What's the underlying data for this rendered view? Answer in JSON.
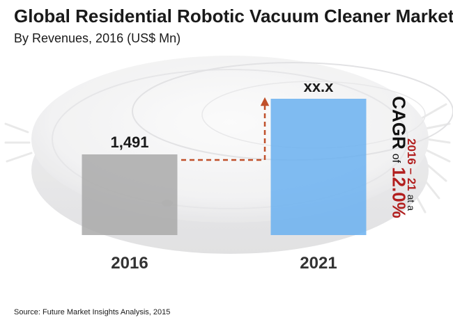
{
  "title": "Global Residential Robotic Vacuum Cleaner Market",
  "subtitle": "By Revenues, 2016 (US$ Mn)",
  "source": "Source: Future Market Insights Analysis, 2015",
  "colors": {
    "bar_2016": "#a9a9a9",
    "bar_2021": "#6ab0f0",
    "arrow": "#c0502a",
    "cagr_rate": "#b21e1e"
  },
  "annotation": {
    "cagr_label": "CAGR",
    "of_label": "of",
    "cagr_rate": "12.0%",
    "period": "2016 – 21",
    "at_label": "at a"
  },
  "chart_data": {
    "type": "bar",
    "categories": [
      "2016",
      "2021"
    ],
    "values": [
      1491,
      null
    ],
    "value_labels": [
      "1,491",
      "xx.x"
    ],
    "title": "Global Residential Robotic Vacuum Cleaner Market",
    "subtitle": "By Revenues, 2016 (US$ Mn)",
    "xlabel": "",
    "ylabel": "",
    "grid": false,
    "legend": "none"
  }
}
